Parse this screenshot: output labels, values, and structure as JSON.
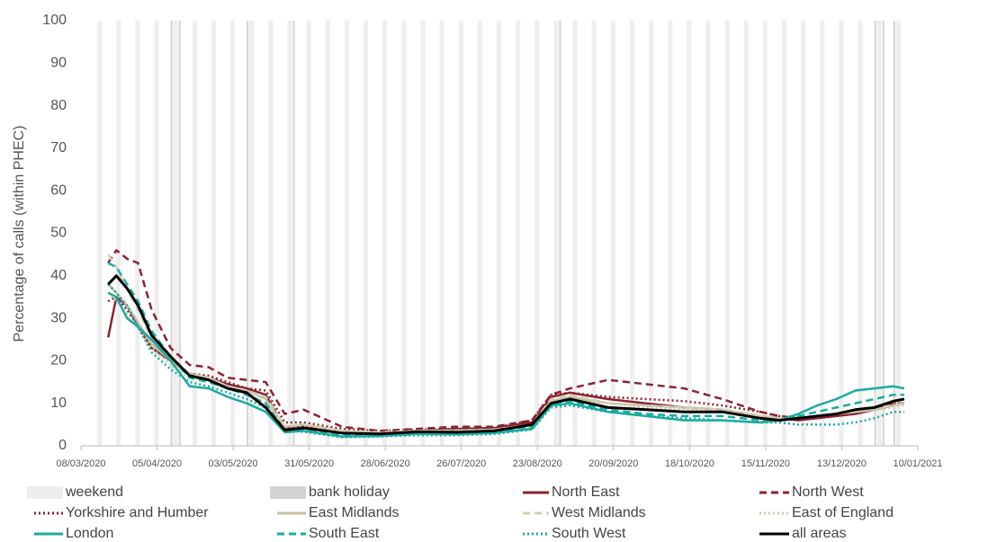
{
  "chart_data": {
    "type": "line",
    "y_label": "Percentage of calls (within PHEC)",
    "xlim": [
      "08/03/2020",
      "10/01/2021"
    ],
    "xticks": [
      "08/03/2020",
      "05/04/2020",
      "03/05/2020",
      "31/05/2020",
      "28/06/2020",
      "26/07/2020",
      "23/08/2020",
      "20/09/2020",
      "18/10/2020",
      "15/11/2020",
      "13/12/2020",
      "10/01/2021"
    ],
    "ylim": [
      0,
      100
    ],
    "yticks": [
      0,
      10,
      20,
      30,
      40,
      50,
      60,
      70,
      80,
      90,
      100
    ],
    "shading": [
      {
        "name": "weekend",
        "color": "#eeeeee",
        "dates": [
          "14/03/2020",
          "21/03/2020",
          "28/03/2020",
          "04/04/2020",
          "11/04/2020",
          "18/04/2020",
          "25/04/2020",
          "02/05/2020",
          "09/05/2020",
          "16/05/2020",
          "23/05/2020",
          "30/05/2020",
          "06/06/2020",
          "13/06/2020",
          "20/06/2020",
          "27/06/2020",
          "04/07/2020",
          "11/07/2020",
          "18/07/2020",
          "25/07/2020",
          "01/08/2020",
          "08/08/2020",
          "15/08/2020",
          "22/08/2020",
          "29/08/2020",
          "05/09/2020",
          "12/09/2020",
          "19/09/2020",
          "26/09/2020",
          "03/10/2020",
          "10/10/2020",
          "17/10/2020",
          "24/10/2020",
          "31/10/2020",
          "07/11/2020",
          "14/11/2020",
          "21/11/2020",
          "28/11/2020",
          "05/12/2020",
          "12/12/2020",
          "19/12/2020",
          "26/12/2020",
          "02/01/2021"
        ]
      },
      {
        "name": "bank holiday",
        "color": "#d3d3d3",
        "dates": [
          "10/04/2020",
          "13/04/2020",
          "08/05/2020",
          "25/05/2020",
          "31/08/2020",
          "25/12/2020",
          "28/12/2020",
          "01/01/2021"
        ]
      }
    ],
    "x": [
      "18/03/2020",
      "21/03/2020",
      "25/03/2020",
      "29/03/2020",
      "03/04/2020",
      "10/04/2020",
      "17/04/2020",
      "24/04/2020",
      "01/05/2020",
      "08/05/2020",
      "15/05/2020",
      "22/05/2020",
      "29/05/2020",
      "12/06/2020",
      "26/06/2020",
      "10/07/2020",
      "24/07/2020",
      "07/08/2020",
      "21/08/2020",
      "28/08/2020",
      "04/09/2020",
      "18/09/2020",
      "02/10/2020",
      "16/10/2020",
      "30/10/2020",
      "13/11/2020",
      "20/11/2020",
      "27/11/2020",
      "04/12/2020",
      "11/12/2020",
      "18/12/2020",
      "25/12/2020",
      "01/01/2021",
      "05/01/2021"
    ],
    "series": [
      {
        "name": "North East",
        "color": "#8b2332",
        "dash": "solid",
        "values": [
          25.5,
          35,
          33,
          28,
          23,
          20,
          17,
          16,
          14.5,
          13.5,
          12,
          4,
          4.5,
          3.2,
          3,
          3.5,
          4,
          4.2,
          5.5,
          11.5,
          12.5,
          11,
          10,
          9,
          8.5,
          7,
          6.5,
          6,
          6.5,
          7,
          7.5,
          8.5,
          9.5,
          10
        ]
      },
      {
        "name": "North West",
        "color": "#8b2332",
        "dash": "dashed",
        "values": [
          43,
          46,
          44,
          43,
          32,
          23,
          19,
          18.5,
          16,
          15.5,
          15,
          7.5,
          8.5,
          4.5,
          3.5,
          4,
          4.5,
          4.5,
          6,
          12,
          13.5,
          15.5,
          14.5,
          13.5,
          11,
          8,
          7,
          6.5,
          7,
          7.5,
          8,
          9,
          10,
          10
        ]
      },
      {
        "name": "Yorkshire and Humber",
        "color": "#8b2332",
        "dash": "dotted",
        "values": [
          34,
          35,
          32,
          28,
          23,
          20,
          17,
          16.5,
          15,
          13.5,
          13,
          5.5,
          5.5,
          4,
          3.5,
          3.8,
          4,
          4.2,
          6,
          12,
          12.5,
          11.5,
          11,
          10.5,
          9.5,
          8,
          7,
          6.5,
          7,
          7.5,
          8,
          9,
          10,
          10
        ]
      },
      {
        "name": "East Midlands",
        "color": "#c4c2a4",
        "dash": "solid",
        "values": [
          38,
          36,
          33,
          29,
          24,
          20,
          17,
          16,
          14,
          13,
          11,
          4.5,
          5,
          3.5,
          3,
          3.5,
          3.6,
          3.8,
          5,
          10.5,
          11.5,
          10,
          9.5,
          9,
          8.5,
          7,
          6.5,
          6.5,
          7,
          7.5,
          8,
          8.5,
          9.5,
          10
        ]
      },
      {
        "name": "West Midlands",
        "color": "#d2cfb6",
        "dash": "dashed",
        "values": [
          45,
          42,
          37,
          32,
          25,
          21,
          17,
          16,
          14,
          13,
          11.5,
          4.5,
          5,
          3.5,
          3.2,
          3.5,
          3.6,
          3.8,
          5,
          11,
          12,
          10,
          9.5,
          9,
          8.5,
          7,
          6.5,
          6.5,
          7,
          7.5,
          8,
          9,
          9.5,
          10
        ]
      },
      {
        "name": "East of England",
        "color": "#cfcbb0",
        "dash": "dotted",
        "values": [
          36,
          34,
          31,
          28,
          23,
          19,
          16,
          15.5,
          14,
          12.5,
          10,
          3.8,
          4.5,
          3.2,
          3,
          3.2,
          3.3,
          3.5,
          4.5,
          10,
          11,
          10,
          9,
          8.5,
          8,
          7,
          6.5,
          6.5,
          7,
          7.5,
          8,
          8.5,
          9,
          9.5
        ]
      },
      {
        "name": "London",
        "color": "#19aba0",
        "dash": "solid",
        "values": [
          36,
          35,
          30,
          28,
          25,
          20,
          14,
          13.5,
          11.5,
          10,
          8,
          3.2,
          3.5,
          2.2,
          2.3,
          2.8,
          2.7,
          3,
          4,
          9.5,
          10,
          8,
          7,
          6,
          6,
          5.5,
          6,
          7.5,
          9.5,
          11,
          13,
          13.5,
          14,
          13.5
        ]
      },
      {
        "name": "South East",
        "color": "#19aba0",
        "dash": "dashed",
        "values": [
          43,
          42,
          38,
          34,
          27,
          21,
          16,
          15,
          13.5,
          12,
          10,
          3.5,
          4,
          2.5,
          2.5,
          3,
          3,
          3.2,
          4.5,
          10,
          10.5,
          8.5,
          7.5,
          7,
          7,
          6,
          6,
          7,
          8,
          9,
          10,
          11,
          12,
          12
        ]
      },
      {
        "name": "South West",
        "color": "#19aba0",
        "dash": "dotted",
        "values": [
          38,
          36,
          33,
          28,
          22,
          18,
          15,
          14,
          12.5,
          11,
          9,
          3.5,
          3.3,
          2,
          2.2,
          2.5,
          2.5,
          2.8,
          3.8,
          9,
          9.5,
          8,
          7,
          6.5,
          6,
          5.5,
          5.5,
          5,
          5,
          5,
          5.5,
          6.5,
          8,
          8
        ]
      },
      {
        "name": "all areas",
        "color": "#000000",
        "dash": "solid",
        "values": [
          38,
          40,
          37,
          33,
          26,
          21,
          16.5,
          15.5,
          13.5,
          12.5,
          9,
          3.7,
          4.2,
          3,
          2.8,
          3.3,
          3.2,
          3.5,
          5,
          10,
          11,
          9,
          8.5,
          8,
          8,
          6.5,
          6,
          6.5,
          7,
          7.5,
          8.5,
          9,
          10.5,
          11
        ]
      }
    ]
  }
}
